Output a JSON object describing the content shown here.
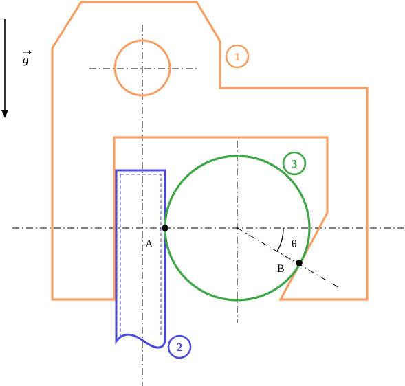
{
  "gravity": {
    "symbol": "g⃗",
    "label": "g"
  },
  "parts": [
    {
      "number": "1",
      "color": "#F5A066"
    },
    {
      "number": "2",
      "color": "#4A4ADB"
    },
    {
      "number": "3",
      "color": "#3FA64A"
    }
  ],
  "points": {
    "A": "A",
    "B": "B"
  },
  "angle": {
    "symbol": "θ"
  },
  "colors": {
    "body": "#F5A066",
    "plate": "#4A4ADB",
    "disk": "#3FA64A",
    "axis": "#000000",
    "point": "#000000"
  }
}
